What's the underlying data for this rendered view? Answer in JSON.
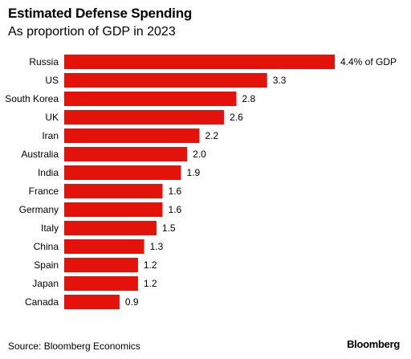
{
  "chart_data": {
    "type": "bar",
    "orientation": "horizontal",
    "title": "Estimated Defense Spending",
    "subtitle": "As proportion of GDP in 2023",
    "categories": [
      "Russia",
      "US",
      "South Korea",
      "UK",
      "Iran",
      "Australia",
      "India",
      "France",
      "Germany",
      "Italy",
      "China",
      "Spain",
      "Japan",
      "Canada"
    ],
    "values": [
      4.4,
      3.3,
      2.8,
      2.6,
      2.2,
      2.0,
      1.9,
      1.6,
      1.6,
      1.5,
      1.3,
      1.2,
      1.2,
      0.9
    ],
    "value_labels": [
      "4.4% of GDP",
      "3.3",
      "2.8",
      "2.6",
      "2.2",
      "2.0",
      "1.9",
      "1.6",
      "1.6",
      "1.5",
      "1.3",
      "1.2",
      "1.2",
      "0.9"
    ],
    "xlim": [
      0,
      4.4
    ],
    "grid": false,
    "bar_color": "#e3120b"
  },
  "footer": {
    "source": "Source: Bloomberg Economics",
    "brand": "Bloomberg"
  }
}
